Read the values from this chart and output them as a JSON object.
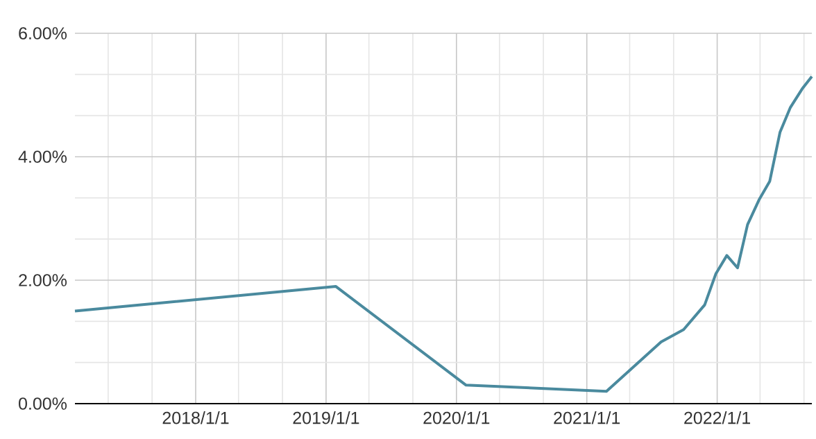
{
  "chart_data": {
    "type": "line",
    "x": [
      "2017-01-28",
      "2019-01-28",
      "2020-01-28",
      "2021-02-25",
      "2021-07-28",
      "2021-09-29",
      "2021-11-27",
      "2021-12-28",
      "2022-01-28",
      "2022-02-27",
      "2022-03-27",
      "2022-04-28",
      "2022-05-28",
      "2022-06-26",
      "2022-07-25",
      "2022-08-27",
      "2022-09-23"
    ],
    "series": [
      {
        "color": "#4a8a9e",
        "values": [
          1.5,
          1.9,
          0.3,
          0.2,
          1.0,
          1.2,
          1.6,
          2.1,
          2.4,
          2.2,
          2.9,
          3.3,
          3.6,
          4.4,
          4.8,
          5.1,
          5.3
        ]
      }
    ],
    "xlim": [
      "2017-01-28",
      "2022-09-23"
    ],
    "xticks": [
      {
        "value": "2017-05-01",
        "label": null
      },
      {
        "value": "2017-09-01",
        "label": null
      },
      {
        "value": "2018-01-01",
        "label": "2018/1/1"
      },
      {
        "value": "2018-05-01",
        "label": null
      },
      {
        "value": "2018-09-01",
        "label": null
      },
      {
        "value": "2019-01-01",
        "label": "2019/1/1"
      },
      {
        "value": "2019-05-01",
        "label": null
      },
      {
        "value": "2019-09-01",
        "label": null
      },
      {
        "value": "2020-01-01",
        "label": "2020/1/1"
      },
      {
        "value": "2020-05-01",
        "label": null
      },
      {
        "value": "2020-09-01",
        "label": null
      },
      {
        "value": "2021-01-01",
        "label": "2021/1/1"
      },
      {
        "value": "2021-05-01",
        "label": null
      },
      {
        "value": "2021-09-01",
        "label": null
      },
      {
        "value": "2022-01-01",
        "label": "2022/1/1"
      },
      {
        "value": "2022-05-01",
        "label": null
      },
      {
        "value": "2022-09-01",
        "label": null
      }
    ],
    "ylim": [
      0,
      6
    ],
    "yticks": [
      {
        "value": 0,
        "label": "0.00%"
      },
      {
        "value": 0.6667,
        "label": null
      },
      {
        "value": 1.3333,
        "label": null
      },
      {
        "value": 2,
        "label": "2.00%"
      },
      {
        "value": 2.6667,
        "label": null
      },
      {
        "value": 3.3333,
        "label": null
      },
      {
        "value": 4,
        "label": "4.00%"
      },
      {
        "value": 4.6667,
        "label": null
      },
      {
        "value": 5.3333,
        "label": null
      },
      {
        "value": 6,
        "label": "6.00%"
      }
    ],
    "grid": true,
    "marker": "none",
    "line_style": "solid"
  }
}
